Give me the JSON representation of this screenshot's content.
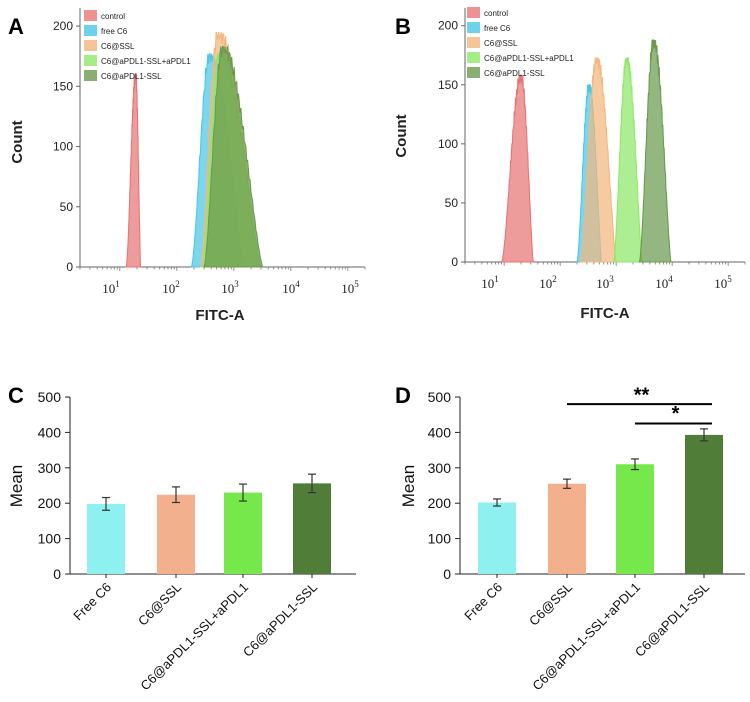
{
  "chart_data": [
    {
      "panel": "A",
      "type": "area",
      "subtype": "flow cytometry histogram overlay",
      "xlabel": "FITC-A",
      "ylabel": "Count",
      "xscale": "log",
      "xlim": [
        2,
        200000
      ],
      "ylim": [
        0,
        215
      ],
      "y_ticks": [
        "0",
        "50",
        "100",
        "150",
        "200"
      ],
      "x_ticks": [
        {
          "base": "10",
          "exp": "1",
          "value": 10
        },
        {
          "base": "10",
          "exp": "2",
          "value": 100
        },
        {
          "base": "10",
          "exp": "3",
          "value": 1000
        },
        {
          "base": "10",
          "exp": "4",
          "value": 10000
        },
        {
          "base": "10",
          "exp": "5",
          "value": 100000
        }
      ],
      "legend_position": "top-center",
      "series": [
        {
          "name": "control",
          "color": "#e87575",
          "peak_x": 19,
          "peak_y": 160,
          "start_x": 13,
          "end_x": 23
        },
        {
          "name": "free C6",
          "color": "#49c8e8",
          "peak_x": 380,
          "peak_y": 177,
          "start_x": 180,
          "end_x": 1500
        },
        {
          "name": "C6@SSL",
          "color": "#f2b77e",
          "peak_x": 530,
          "peak_y": 195,
          "start_x": 260,
          "end_x": 3000
        },
        {
          "name": "C6@aPDL1-SSL+aPDL1",
          "color": "#8fe868",
          "peak_x": 560,
          "peak_y": 178,
          "start_x": 280,
          "end_x": 3000
        },
        {
          "name": "C6@aPDL1-SSL",
          "color": "#6b9a4f",
          "peak_x": 640,
          "peak_y": 183,
          "start_x": 300,
          "end_x": 3200
        }
      ]
    },
    {
      "panel": "B",
      "type": "area",
      "subtype": "flow cytometry histogram overlay",
      "xlabel": "FITC-A",
      "ylabel": "Count",
      "xscale": "log",
      "xlim": [
        2,
        200000
      ],
      "ylim": [
        0,
        215
      ],
      "y_ticks": [
        "0",
        "50",
        "100",
        "150",
        "200"
      ],
      "x_ticks": [
        {
          "base": "10",
          "exp": "1",
          "value": 10
        },
        {
          "base": "10",
          "exp": "2",
          "value": 100
        },
        {
          "base": "10",
          "exp": "3",
          "value": 1000
        },
        {
          "base": "10",
          "exp": "4",
          "value": 10000
        },
        {
          "base": "10",
          "exp": "5",
          "value": 100000
        }
      ],
      "legend_position": "top-left",
      "series": [
        {
          "name": "control",
          "color": "#e87575",
          "peak_x": 20,
          "peak_y": 158,
          "start_x": 9,
          "end_x": 33
        },
        {
          "name": "free C6",
          "color": "#49c8e8",
          "peak_x": 330,
          "peak_y": 150,
          "start_x": 200,
          "end_x": 550
        },
        {
          "name": "C6@SSL",
          "color": "#f2b77e",
          "peak_x": 450,
          "peak_y": 173,
          "start_x": 230,
          "end_x": 1000
        },
        {
          "name": "C6@aPDL1-SSL+aPDL1",
          "color": "#8fe868",
          "peak_x": 1550,
          "peak_y": 173,
          "start_x": 900,
          "end_x": 2900
        },
        {
          "name": "C6@aPDL1-SSL",
          "color": "#6b9a4f",
          "peak_x": 4700,
          "peak_y": 188,
          "start_x": 2600,
          "end_x": 9500
        }
      ]
    },
    {
      "panel": "C",
      "type": "bar",
      "ylabel": "Mean",
      "ylim": [
        0,
        500
      ],
      "y_ticks": [
        "0",
        "100",
        "200",
        "300",
        "400",
        "500"
      ],
      "categories": [
        "Free C6",
        "C6@SSL",
        "C6@aPDL1-SSL+aPDL1",
        "C6@aPDL1-SSL"
      ],
      "values": [
        198,
        224,
        230,
        256
      ],
      "errors": [
        18,
        22,
        24,
        26
      ],
      "colors": [
        "#8ef0ef",
        "#f2b08d",
        "#77e84c",
        "#507e39"
      ]
    },
    {
      "panel": "D",
      "type": "bar",
      "ylabel": "Mean",
      "ylim": [
        0,
        500
      ],
      "y_ticks": [
        "0",
        "100",
        "200",
        "300",
        "400",
        "500"
      ],
      "categories": [
        "Free C6",
        "C6@SSL",
        "C6@aPDL1-SSL+aPDL1",
        "C6@aPDL1-SSL"
      ],
      "values": [
        202,
        255,
        310,
        393
      ],
      "errors": [
        10,
        13,
        15,
        17
      ],
      "colors": [
        "#8ef0ef",
        "#f2b08d",
        "#77e84c",
        "#507e39"
      ],
      "significance": [
        {
          "from": "C6@SSL",
          "to": "C6@aPDL1-SSL",
          "label": "**"
        },
        {
          "from": "C6@aPDL1-SSL+aPDL1",
          "to": "C6@aPDL1-SSL",
          "label": "*"
        }
      ]
    }
  ]
}
